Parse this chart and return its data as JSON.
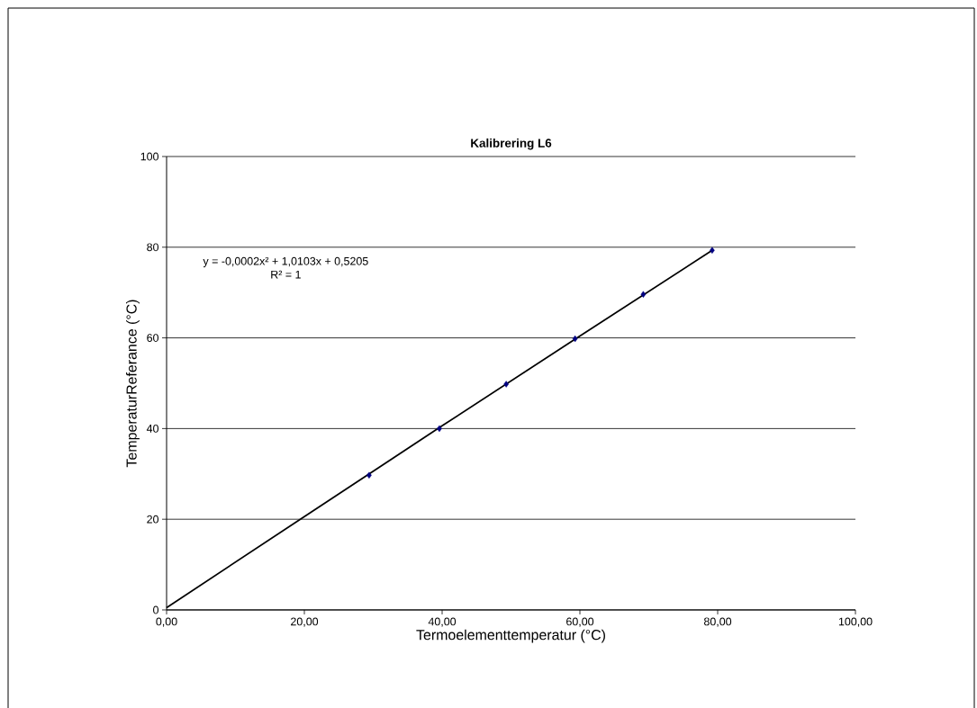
{
  "chart_data": {
    "type": "scatter",
    "title": "Kalibrering L6",
    "xlabel": "Termoelementtemperatur (°C)",
    "ylabel": "TemperaturReferance (°C)",
    "annotations": [
      "y = -0,0002x² + 1,0103x + 0,5205",
      "R² = 1"
    ],
    "x": [
      29.4,
      39.6,
      49.3,
      59.3,
      69.2,
      79.2
    ],
    "series": [
      {
        "type": "scatter",
        "color": "#000080",
        "marker": "diamond",
        "values": [
          29.7,
          40.0,
          49.8,
          59.8,
          69.6,
          79.3
        ]
      },
      {
        "type": "line",
        "color": "#000000",
        "marker": "none",
        "x": [
          0,
          20,
          40,
          60,
          79.2
        ],
        "values": [
          0.5,
          20.6,
          40.6,
          60.4,
          79.3
        ]
      }
    ],
    "xlim": [
      0,
      100
    ],
    "ylim": [
      0,
      100
    ],
    "xticks": [
      {
        "value": 0,
        "label": "0,00"
      },
      {
        "value": 20,
        "label": "20,00"
      },
      {
        "value": 40,
        "label": "40,00"
      },
      {
        "value": 60,
        "label": "60,00"
      },
      {
        "value": 80,
        "label": "80,00"
      },
      {
        "value": 100,
        "label": "100,00"
      }
    ],
    "yticks": [
      0,
      20,
      40,
      60,
      80,
      100
    ],
    "grid": "y"
  }
}
